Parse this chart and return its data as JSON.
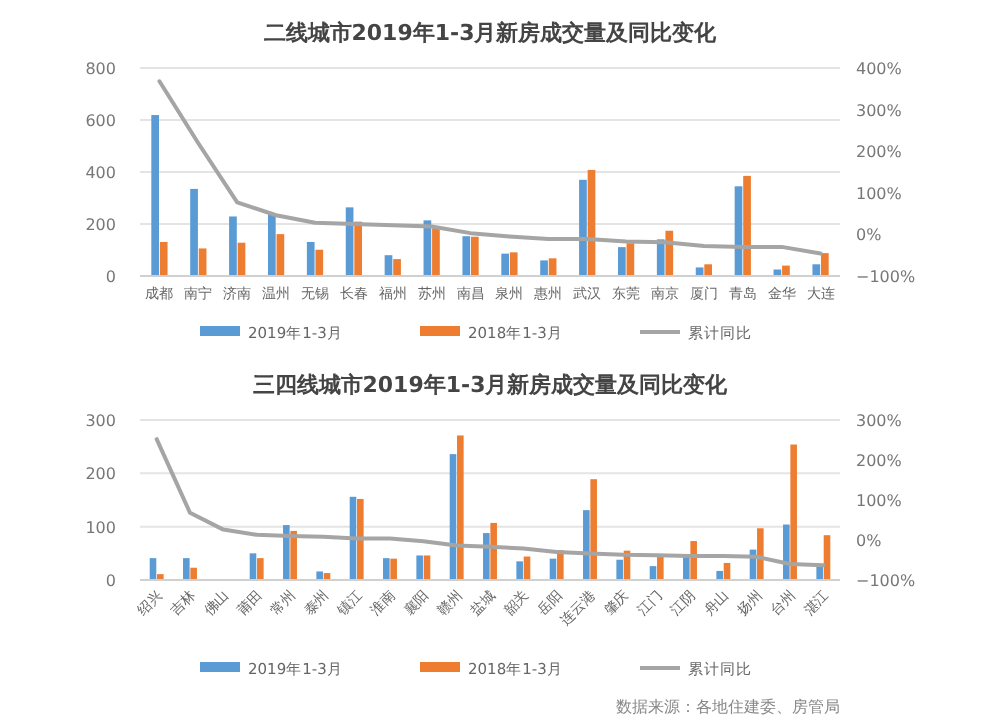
{
  "chart_data": [
    {
      "type": "bar",
      "title": "二线城市2019年1-3月新房成交量及同比变化",
      "categories": [
        "成都",
        "南宁",
        "济南",
        "温州",
        "无锡",
        "长春",
        "福州",
        "苏州",
        "南昌",
        "泉州",
        "惠州",
        "武汉",
        "东莞",
        "南京",
        "厦门",
        "青岛",
        "金华",
        "大连"
      ],
      "series": [
        {
          "name": "2019年1-3月",
          "color": "#5b9bd5",
          "values": [
            619,
            335,
            229,
            239,
            131,
            264,
            80,
            214,
            153,
            86,
            60,
            370,
            111,
            141,
            33,
            345,
            25,
            45
          ]
        },
        {
          "name": "2018年1-3月",
          "color": "#ed7d31",
          "values": [
            131,
            106,
            128,
            161,
            101,
            209,
            65,
            184,
            151,
            91,
            68,
            408,
            126,
            174,
            45,
            385,
            40,
            88
          ]
        },
        {
          "name": "累计同比",
          "type": "line",
          "axis": "y2",
          "color": "#a5a5a5",
          "values": [
            368,
            219,
            77,
            46,
            28,
            25,
            22,
            19,
            3,
            -5,
            -11,
            -11,
            -17,
            -19,
            -28,
            -30,
            -30,
            -46
          ]
        }
      ],
      "ylim": [
        0,
        800
      ],
      "yticks": [
        0,
        200,
        400,
        600,
        800
      ],
      "y2lim": [
        -100,
        400
      ],
      "y2ticks": [
        {
          "value": -100,
          "label": "−100%"
        },
        {
          "value": 0,
          "label": "0%"
        },
        {
          "value": 100,
          "label": "100%"
        },
        {
          "value": 200,
          "label": "200%"
        },
        {
          "value": 300,
          "label": "300%"
        },
        {
          "value": 400,
          "label": "400%"
        }
      ],
      "grid": "y",
      "legend": "bottom",
      "marker": "none"
    },
    {
      "type": "bar",
      "title": "三四线城市2019年1-3月新房成交量及同比变化",
      "categories": [
        "绍兴",
        "吉林",
        "佛山",
        "莆田",
        "常州",
        "泰州",
        "镇江",
        "淮南",
        "襄阳",
        "赣州",
        "盐城",
        "韶关",
        "岳阳",
        "连云港",
        "肇庆",
        "江门",
        "江阴",
        "舟山",
        "扬州",
        "台州",
        "湛江"
      ],
      "series": [
        {
          "name": "2019年1-3月",
          "color": "#5b9bd5",
          "values": [
            41,
            41,
            null,
            50,
            103,
            16,
            156,
            41,
            46,
            236,
            88,
            35,
            40,
            131,
            38,
            26,
            46,
            17,
            57,
            104,
            27
          ]
        },
        {
          "name": "2018年1-3月",
          "color": "#ed7d31",
          "values": [
            11,
            23,
            null,
            41,
            92,
            13,
            152,
            40,
            46,
            271,
            107,
            44,
            56,
            189,
            55,
            44,
            73,
            32,
            97,
            254,
            84
          ]
        },
        {
          "name": "累计同比",
          "type": "line",
          "axis": "y2",
          "color": "#a5a5a5",
          "values": [
            252,
            68,
            26,
            13,
            10,
            8,
            4,
            4,
            -3,
            -14,
            -17,
            -21,
            -30,
            -34,
            -37,
            -38,
            -40,
            -40,
            -42,
            -60,
            -63
          ]
        }
      ],
      "ylim": [
        0,
        300
      ],
      "yticks": [
        0,
        100,
        200,
        300
      ],
      "y2lim": [
        -100,
        300
      ],
      "y2ticks": [
        {
          "value": -100,
          "label": "−100%"
        },
        {
          "value": 0,
          "label": "0%"
        },
        {
          "value": 100,
          "label": "100%"
        },
        {
          "value": 200,
          "label": "200%"
        },
        {
          "value": 300,
          "label": "300%"
        }
      ],
      "grid": "y",
      "legend": "bottom",
      "marker": "none",
      "annotations": [
        "数据来源：各地住建委、房管局"
      ]
    }
  ]
}
